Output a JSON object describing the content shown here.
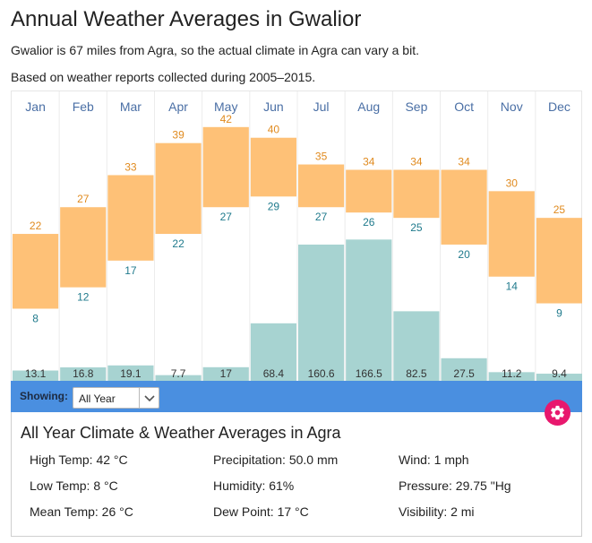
{
  "title": "Annual Weather Averages in Gwalior",
  "intro_distance": "Gwalior is 67 miles from Agra, so the actual climate in Agra can vary a bit.",
  "intro_period": "Based on weather reports collected during 2005–2015.",
  "chart_data": {
    "type": "bar",
    "categories": [
      "Jan",
      "Feb",
      "Mar",
      "Apr",
      "May",
      "Jun",
      "Jul",
      "Aug",
      "Sep",
      "Oct",
      "Nov",
      "Dec"
    ],
    "series": [
      {
        "name": "",
        "kind": "high-temp",
        "values": [
          22,
          27,
          33,
          39,
          42,
          40,
          35,
          34,
          34,
          34,
          30,
          25
        ]
      },
      {
        "name": "",
        "kind": "low-temp",
        "values": [
          8,
          12,
          17,
          22,
          27,
          29,
          27,
          26,
          25,
          20,
          14,
          9
        ]
      },
      {
        "name": "",
        "kind": "precipitation",
        "values": [
          13.1,
          16.8,
          19.1,
          7.7,
          17,
          68.4,
          160.6,
          166.5,
          82.5,
          27.5,
          11.2,
          9.4
        ]
      }
    ],
    "temp_range": [
      -5,
      47
    ],
    "precip_range": [
      0,
      340
    ],
    "colors": {
      "temp_bar": "#fec177",
      "precip_bar": "#a7d3d1",
      "high_label": "#e08a1e",
      "low_label": "#1f7a8c",
      "month_label": "#4a6fa5"
    }
  },
  "showing": {
    "label": "Showing:",
    "selected": "All Year"
  },
  "summary": {
    "title": "All Year Climate & Weather Averages in Agra",
    "high_temp": "High Temp: 42 °C",
    "low_temp": "Low Temp: 8 °C",
    "mean_temp": "Mean Temp: 26 °C",
    "precipitation": "Precipitation: 50.0 mm",
    "humidity": "Humidity: 61%",
    "dew_point": "Dew Point: 17 °C",
    "wind": "Wind: 1 mph",
    "pressure": "Pressure: 29.75 \"Hg",
    "visibility": "Visibility: 2 mi"
  },
  "icons": {
    "gear": "gear-icon",
    "chevron": "chevron-down-icon"
  }
}
